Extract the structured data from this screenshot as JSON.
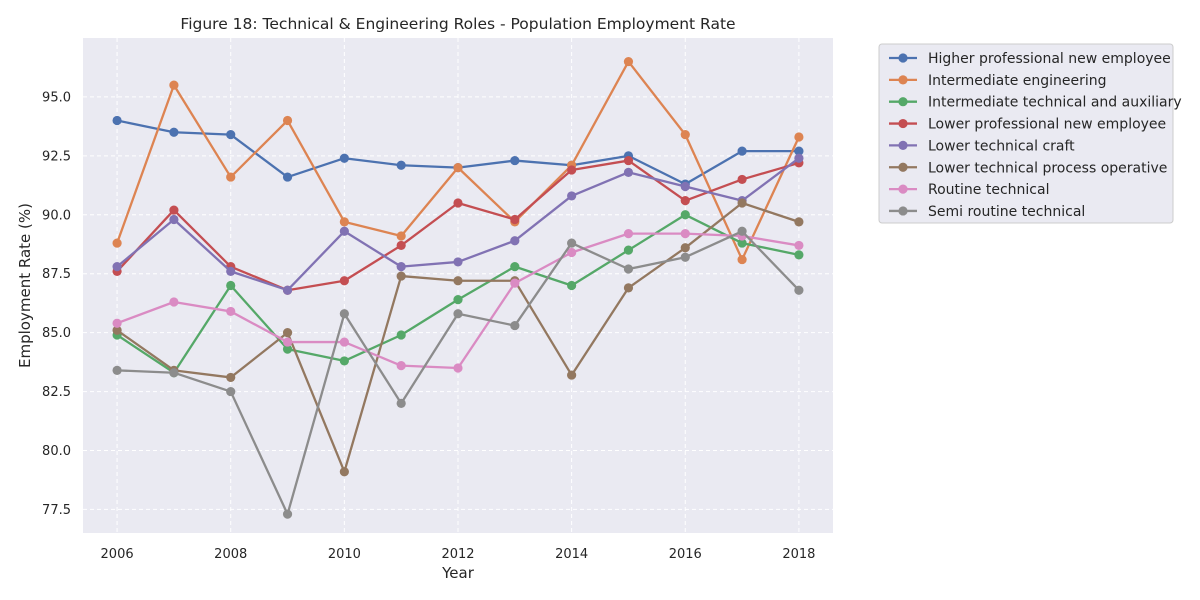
{
  "chart_data": {
    "type": "line",
    "title": "Figure 18: Technical & Engineering Roles - Population Employment Rate",
    "xlabel": "Year",
    "ylabel": "Employment Rate (%)",
    "x": [
      2006,
      2007,
      2008,
      2009,
      2010,
      2011,
      2012,
      2013,
      2014,
      2015,
      2016,
      2017,
      2018
    ],
    "xlim": [
      2005.4,
      2018.6
    ],
    "ylim": [
      76.5,
      97.5
    ],
    "x_ticks": [
      2006,
      2008,
      2010,
      2012,
      2014,
      2016,
      2018
    ],
    "y_ticks": [
      "77.5",
      "80.0",
      "82.5",
      "85.0",
      "87.5",
      "90.0",
      "92.5",
      "95.0"
    ],
    "grid": true,
    "legend_position": "outside right, top",
    "series": [
      {
        "name": "Higher professional new employee",
        "color": "#4c72b0",
        "values": [
          94.0,
          93.5,
          93.4,
          91.6,
          92.4,
          92.1,
          92.0,
          92.3,
          92.1,
          92.5,
          91.3,
          92.7,
          92.7
        ]
      },
      {
        "name": "Intermediate engineering",
        "color": "#dd8452",
        "values": [
          88.8,
          95.5,
          91.6,
          94.0,
          89.7,
          89.1,
          92.0,
          89.7,
          92.1,
          96.5,
          93.4,
          88.1,
          93.3
        ]
      },
      {
        "name": "Intermediate technical and auxiliary",
        "color": "#55a868",
        "values": [
          84.9,
          83.3,
          87.0,
          84.3,
          83.8,
          84.9,
          86.4,
          87.8,
          87.0,
          88.5,
          90.0,
          88.8,
          88.3
        ]
      },
      {
        "name": "Lower professional new employee",
        "color": "#c44e52",
        "values": [
          87.6,
          90.2,
          87.8,
          86.8,
          87.2,
          88.7,
          90.5,
          89.8,
          91.9,
          92.3,
          90.6,
          91.5,
          92.2
        ]
      },
      {
        "name": "Lower technical craft",
        "color": "#8172b3",
        "values": [
          87.8,
          89.8,
          87.6,
          86.8,
          89.3,
          87.8,
          88.0,
          88.9,
          90.8,
          91.8,
          91.2,
          90.6,
          92.4
        ]
      },
      {
        "name": "Lower technical process operative",
        "color": "#937860",
        "values": [
          85.1,
          83.4,
          83.1,
          85.0,
          79.1,
          87.4,
          87.2,
          87.2,
          83.2,
          86.9,
          88.6,
          90.5,
          89.7
        ]
      },
      {
        "name": "Routine technical",
        "color": "#da8bc3",
        "values": [
          85.4,
          86.3,
          85.9,
          84.6,
          84.6,
          83.6,
          83.5,
          87.1,
          88.4,
          89.2,
          89.2,
          89.1,
          88.7
        ]
      },
      {
        "name": "Semi routine technical",
        "color": "#8c8c8c",
        "values": [
          83.4,
          83.3,
          82.5,
          77.3,
          85.8,
          82.0,
          85.8,
          85.3,
          88.8,
          87.7,
          88.2,
          89.3,
          86.8
        ]
      }
    ]
  }
}
